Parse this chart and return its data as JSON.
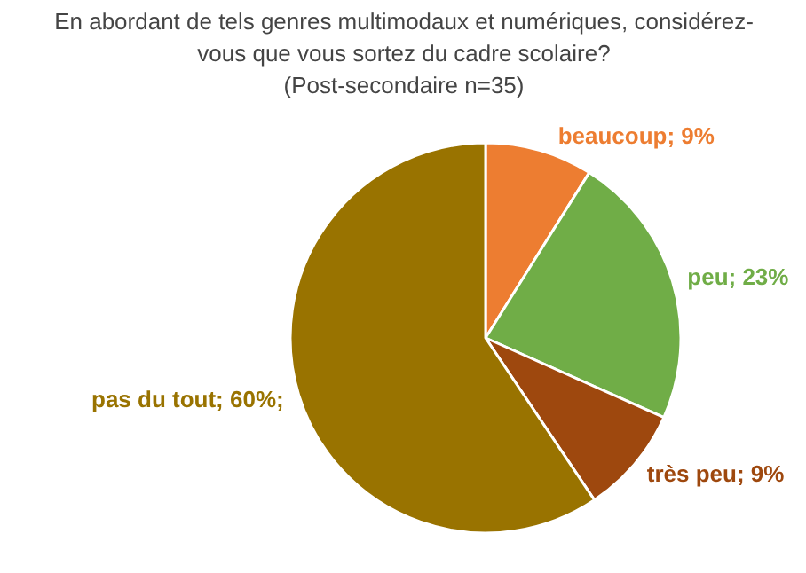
{
  "chart_data": {
    "type": "pie",
    "title": "En abordant de tels genres multimodaux et numériques, considérez-\nvous que vous sortez du cadre scolaire?\n(Post-secondaire n=35)",
    "categories": [
      "beaucoup",
      "peu",
      "très peu",
      "pas du tout"
    ],
    "values": [
      9,
      23,
      9,
      60
    ],
    "colors": [
      "#ed7d31",
      "#70ad47",
      "#9e480e",
      "#997300"
    ],
    "value_labels": [
      "9%",
      "23%",
      "9%",
      "60%;"
    ]
  }
}
